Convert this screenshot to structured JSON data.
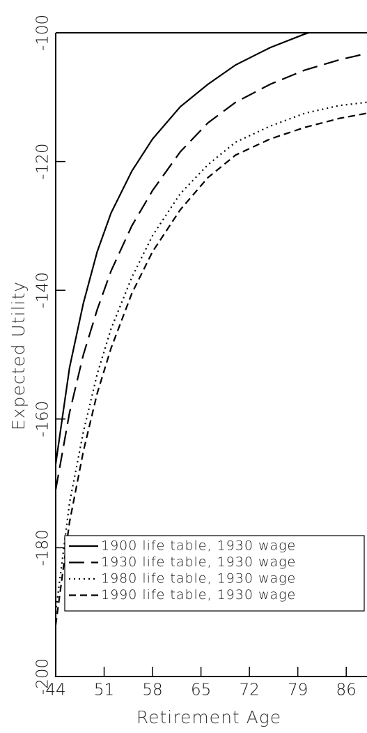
{
  "chart_data": {
    "type": "line",
    "x_label": "Retirement Age",
    "y_label": "Expected Utility",
    "x": [
      44,
      46,
      48,
      50,
      52,
      55,
      58,
      62,
      66,
      70,
      75,
      80,
      85,
      89
    ],
    "series": [
      {
        "name": "1900 life table, 1930 wage",
        "color": "#000000",
        "dash": "solid",
        "values": [
          -167,
          -152,
          -142,
          -134,
          -128,
          -121.5,
          -116.5,
          -111.5,
          -108,
          -105,
          -102.3,
          -100.2,
          -98.5,
          -97.5
        ]
      },
      {
        "name": "1930 life table, 1930 wage",
        "color": "#000000",
        "dash": "longdash",
        "values": [
          -171,
          -159,
          -150,
          -143,
          -137,
          -130,
          -124.5,
          -118.5,
          -114,
          -110.8,
          -108,
          -105.8,
          -104.2,
          -103.2
        ]
      },
      {
        "name": "1980 life table, 1930 wage",
        "color": "#000000",
        "dash": "dotted",
        "values": [
          -190,
          -173,
          -162,
          -153,
          -146,
          -138,
          -131.5,
          -125,
          -120.5,
          -117,
          -114.5,
          -112.5,
          -111.3,
          -110.8
        ]
      },
      {
        "name": "1990 life table, 1930 wage",
        "color": "#000000",
        "dash": "dashed",
        "values": [
          -192,
          -176,
          -165,
          -156,
          -149,
          -140.5,
          -134,
          -127.5,
          -122.5,
          -119,
          -116.5,
          -114.7,
          -113.3,
          -112.5
        ]
      }
    ],
    "xlim": [
      44,
      89
    ],
    "xticks": [
      44,
      51,
      58,
      65,
      72,
      79,
      86
    ],
    "ylim": [
      -200,
      -100
    ],
    "yticks": [
      -200,
      -180,
      -160,
      -140,
      -120,
      -100
    ],
    "legend": "lower left",
    "grid": false
  }
}
